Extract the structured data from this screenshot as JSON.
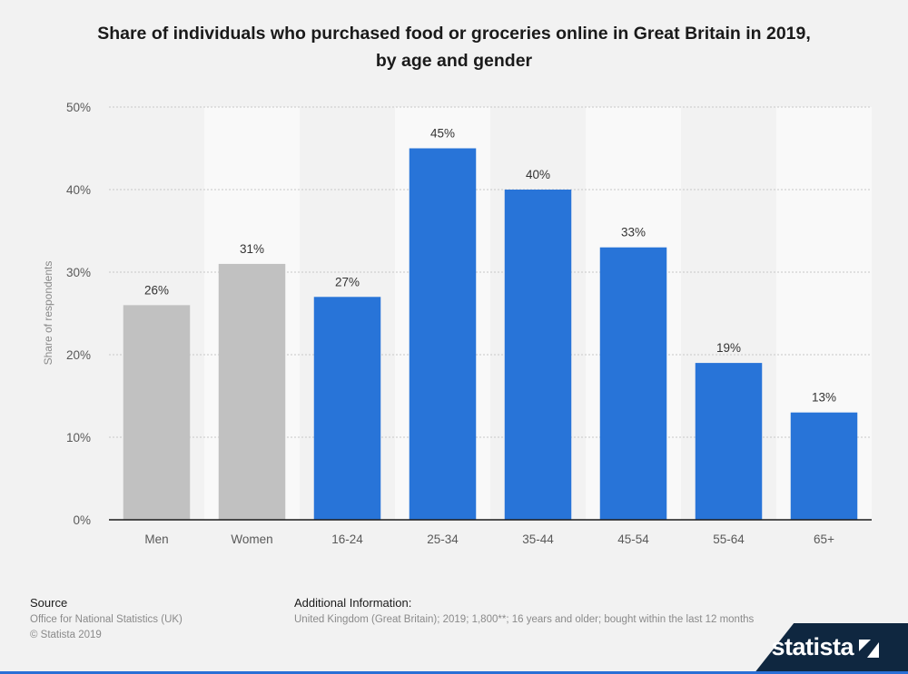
{
  "chart_data": {
    "type": "bar",
    "title_lines": [
      "Share of individuals who purchased food or groceries online in Great Britain in 2019,",
      "by age and gender"
    ],
    "xlabel": "",
    "ylabel": "Share of respondents",
    "ylim": [
      0,
      50
    ],
    "yticks": [
      "0%",
      "10%",
      "20%",
      "30%",
      "40%",
      "50%"
    ],
    "y_unit": "%",
    "grid": true,
    "categories": [
      "Men",
      "Women",
      "16-24",
      "25-34",
      "35-44",
      "45-54",
      "55-64",
      "65+"
    ],
    "values": [
      26,
      31,
      27,
      45,
      40,
      33,
      19,
      13
    ],
    "value_labels": [
      "26%",
      "31%",
      "27%",
      "45%",
      "40%",
      "33%",
      "19%",
      "13%"
    ],
    "bar_colors": [
      "#c1c1c1",
      "#c1c1c1",
      "#2874d8",
      "#2874d8",
      "#2874d8",
      "#2874d8",
      "#2874d8",
      "#2874d8"
    ]
  },
  "footer": {
    "source_label": "Source",
    "source_lines": [
      "Office for National Statistics (UK)",
      "© Statista 2019"
    ],
    "info_label": "Additional Information:",
    "info_text": "United Kingdom (Great Britain); 2019; 1,800**; 16 years and older; bought within the last 12 months"
  },
  "brand": {
    "name": "statista"
  },
  "colors": {
    "accent": "#2874d8",
    "comparison": "#c1c1c1",
    "brand_bg": "#0f2740"
  }
}
